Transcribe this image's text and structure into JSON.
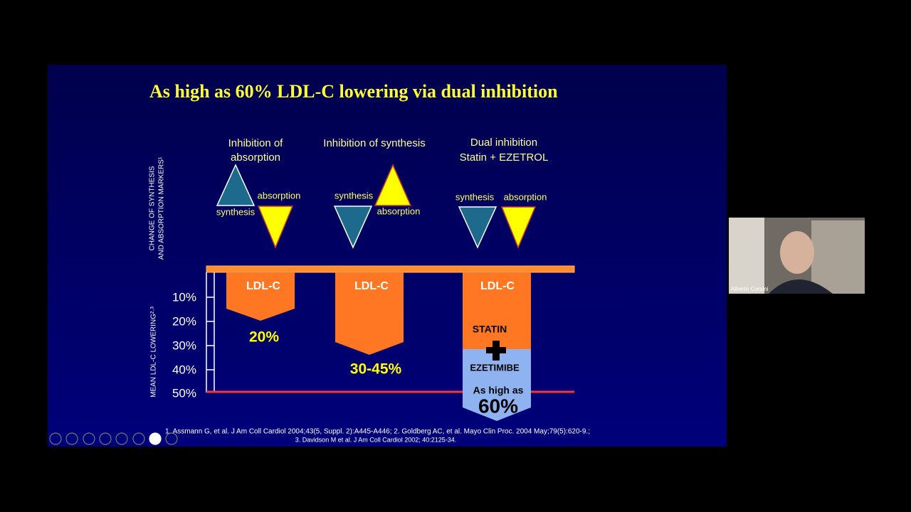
{
  "slide": {
    "title": "As high as 60% LDL-C lowering via dual inhibition",
    "top_axis_label": [
      "CHANGE OF SYNTHESIS",
      "AND ABSORPTION MARKERS¹"
    ],
    "bottom_axis_label": "MEAN LDL-C LOWERING²·³",
    "ticks": [
      "10%",
      "20%",
      "30%",
      "40%",
      "50%"
    ],
    "columns": [
      {
        "heading": [
          "Inhibition of",
          "absorption"
        ],
        "synthesis": "synthesis",
        "absorption": "absorption",
        "bar": "LDL-C",
        "result": "20%"
      },
      {
        "heading": [
          "Inhibition of synthesis"
        ],
        "synthesis": "synthesis",
        "absorption": "absorption",
        "bar": "LDL-C",
        "result": "30-45%"
      },
      {
        "heading": [
          "Dual inhibition",
          "Statin + EZETROL"
        ],
        "synthesis": "synthesis",
        "absorption": "absorption",
        "bar": "LDL-C",
        "statin": "STATIN",
        "ezetimibe": "EZETIMIBE",
        "result_prefix": "As high as",
        "result": "60%"
      }
    ],
    "footnotes": [
      "1. Assmann G, et al. J Am Coll Cardiol 2004;43(5, Suppl. 2):A445-A446;  2. Goldberg AC, et al. Mayo Clin Proc. 2004 May;79(5):620-9.;",
      "3. Davidson M et al. J Am Coll Cardiol 2002; 40:2125-34."
    ]
  },
  "webcam": {
    "name": "Alberto Corsini"
  }
}
